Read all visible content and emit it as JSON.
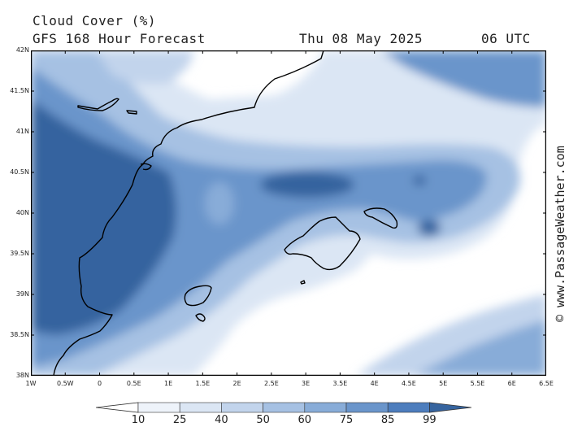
{
  "header": {
    "title": "Cloud Cover (%)",
    "subtitle": "GFS 168 Hour Forecast",
    "valid_date": "Thu 08 May 2025",
    "valid_time": "06 UTC"
  },
  "credit": "© www.PassageWeather.com",
  "axes": {
    "lat_labels": [
      "42N",
      "41.5N",
      "41N",
      "40.5N",
      "40N",
      "39.5N",
      "39N",
      "38.5N",
      "38N"
    ],
    "lon_labels": [
      "1W",
      "0.5W",
      "0",
      "0.5E",
      "1E",
      "1.5E",
      "2E",
      "2.5E",
      "3E",
      "3.5E",
      "4E",
      "4.5E",
      "5E",
      "5.5E",
      "6E",
      "6.5E"
    ],
    "lat_range": [
      38,
      42
    ],
    "lon_range": [
      -1,
      6.5
    ]
  },
  "legend": {
    "levels": [
      "10",
      "25",
      "40",
      "50",
      "60",
      "75",
      "85",
      "99"
    ],
    "colors": [
      "#ffffff",
      "#eef3fa",
      "#dbe6f4",
      "#c2d4ec",
      "#a6c1e3",
      "#88acd8",
      "#6a95cb",
      "#4d7dbd",
      "#36649f"
    ]
  },
  "colors": {
    "coast": "#000000",
    "frame": "#000000"
  }
}
